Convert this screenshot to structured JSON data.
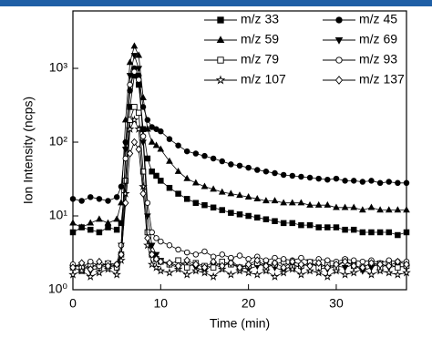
{
  "chart_data": {
    "type": "line",
    "xlabel": "Time (min)",
    "ylabel": "Ion Intensity (ncps)",
    "log_y": true,
    "legend": "upper right",
    "header_color": "#1f5fa6",
    "xlim": [
      0,
      38
    ],
    "xticks": [
      0,
      10,
      20,
      30
    ],
    "ylim": [
      1,
      6000
    ],
    "yticks": [
      {
        "value": 1,
        "label": "10⁰"
      },
      {
        "value": 10,
        "label": "10¹"
      },
      {
        "value": 100,
        "label": "10²"
      },
      {
        "value": 1000,
        "label": "10³"
      }
    ],
    "x": [
      0,
      1,
      2,
      3,
      4,
      5,
      5.5,
      6,
      6.5,
      7,
      7.5,
      8,
      8.5,
      9,
      9.5,
      10,
      11,
      12,
      13,
      14,
      15,
      16,
      17,
      18,
      19,
      20,
      21,
      22,
      23,
      24,
      25,
      26,
      27,
      28,
      29,
      30,
      31,
      32,
      33,
      34,
      35,
      36,
      37,
      38
    ],
    "series": [
      {
        "name": "m/z 33",
        "color": "#000000",
        "marker": "square",
        "filled": true,
        "values": [
          6,
          7,
          6.5,
          6,
          7,
          6.5,
          8,
          30,
          300,
          800,
          600,
          150,
          60,
          40,
          35,
          30,
          24,
          20,
          17,
          15,
          14,
          13,
          12,
          11,
          10.5,
          10,
          9.5,
          9,
          8.5,
          8,
          8,
          7.5,
          7.5,
          7,
          7,
          7,
          6.5,
          6.5,
          6,
          6,
          6,
          6,
          5.5,
          6
        ]
      },
      {
        "name": "m/z 45",
        "color": "#000000",
        "marker": "circle",
        "filled": true,
        "values": [
          17,
          16,
          18,
          17,
          16,
          18,
          25,
          100,
          500,
          1000,
          800,
          300,
          200,
          160,
          150,
          140,
          110,
          90,
          75,
          70,
          65,
          60,
          55,
          50,
          48,
          45,
          42,
          40,
          38,
          36,
          35,
          34,
          33,
          32,
          31,
          32,
          30,
          30,
          29,
          30,
          28,
          29,
          28,
          28
        ]
      },
      {
        "name": "m/z 59",
        "color": "#000000",
        "marker": "triangle-up",
        "filled": true,
        "values": [
          8,
          7,
          8,
          9,
          8,
          9,
          15,
          200,
          1200,
          2000,
          1500,
          400,
          150,
          100,
          90,
          80,
          55,
          40,
          32,
          28,
          25,
          23,
          21,
          20,
          19,
          18,
          17,
          16,
          16,
          15,
          15,
          15,
          14,
          14,
          14,
          13,
          13,
          13,
          12,
          13,
          12,
          12,
          12,
          12
        ]
      },
      {
        "name": "m/z 69",
        "color": "#000000",
        "marker": "triangle-down",
        "filled": true,
        "values": [
          2,
          2.2,
          1.8,
          2,
          2.3,
          2,
          4,
          80,
          800,
          1500,
          1000,
          100,
          10,
          4,
          3,
          2.5,
          2.2,
          2,
          2.4,
          2,
          1.8,
          2.2,
          2,
          2.5,
          2,
          1.9,
          2.1,
          2.3,
          2,
          1.8,
          2.2,
          2,
          2.4,
          2,
          1.9,
          2.1,
          2,
          2.2,
          1.8,
          2,
          2.3,
          2,
          2.1,
          2
        ]
      },
      {
        "name": "m/z 79",
        "color": "#000000",
        "marker": "square",
        "filled": false,
        "values": [
          2,
          1.8,
          2.2,
          2,
          2.1,
          2,
          3,
          30,
          200,
          300,
          250,
          40,
          6,
          3,
          2.6,
          2.4,
          2.2,
          2.5,
          2,
          2.3,
          2.1,
          2,
          2.4,
          2.2,
          2,
          2.1,
          2.3,
          2,
          2.2,
          2.4,
          2,
          2.1,
          2.3,
          2,
          2.2,
          2,
          2.5,
          2.1,
          2,
          2.3,
          2,
          2.2,
          2,
          2.1
        ]
      },
      {
        "name": "m/z 93",
        "color": "#000000",
        "marker": "circle",
        "filled": false,
        "values": [
          2.2,
          2,
          2.4,
          2.1,
          2.3,
          2.2,
          4,
          60,
          600,
          900,
          700,
          120,
          15,
          6,
          5,
          4.5,
          4,
          3.5,
          3.2,
          3,
          3.3,
          2.8,
          3,
          2.7,
          2.9,
          2.6,
          2.8,
          2.5,
          2.7,
          2.6,
          2.5,
          2.7,
          2.4,
          2.6,
          2.5,
          2.4,
          2.6,
          2.5,
          2.4,
          2.5,
          2.3,
          2.5,
          2.4,
          2.4
        ]
      },
      {
        "name": "m/z 107",
        "color": "#000000",
        "marker": "star",
        "filled": false,
        "values": [
          1.6,
          1.8,
          1.5,
          1.7,
          1.9,
          1.6,
          2.5,
          20,
          150,
          200,
          150,
          25,
          4,
          2.2,
          2,
          1.8,
          1.7,
          1.9,
          1.6,
          1.8,
          1.7,
          1.5,
          1.9,
          1.6,
          1.8,
          1.7,
          1.6,
          1.8,
          1.5,
          1.7,
          1.9,
          1.6,
          1.8,
          1.7,
          1.5,
          1.8,
          1.6,
          1.7,
          1.9,
          1.6,
          1.8,
          1.7,
          1.6,
          1.7
        ]
      },
      {
        "name": "m/z 137",
        "color": "#000000",
        "marker": "diamond",
        "filled": false,
        "values": [
          2,
          2.3,
          1.9,
          2.4,
          2.1,
          2.2,
          3,
          15,
          70,
          100,
          80,
          20,
          5,
          3,
          2.6,
          2.4,
          2.3,
          2.1,
          2.5,
          2.2,
          2,
          2.4,
          2.1,
          2.3,
          2,
          2.2,
          2.5,
          2.1,
          2.3,
          2,
          2.4,
          2.2,
          2.1,
          2.3,
          2,
          2.2,
          2.4,
          2.1,
          2,
          2.3,
          2.2,
          2.1,
          2.4,
          2.2
        ]
      }
    ]
  }
}
